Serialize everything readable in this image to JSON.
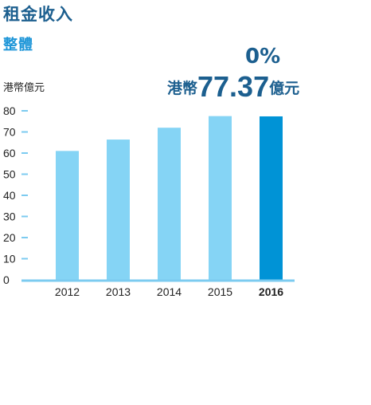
{
  "header": {
    "title": "租金收入",
    "subtitle": "整體",
    "unit_label": "港幣億元",
    "change": "0%",
    "headline_prefix": "港幣",
    "headline_value": "77.37",
    "headline_suffix": "億元"
  },
  "colors": {
    "bar_light": "#85d4f5",
    "bar_highlight": "#0093d6",
    "axis": "#7ccbf0",
    "title": "#1c5f8f",
    "subtitle": "#1e96d8"
  },
  "chart_data": {
    "type": "bar",
    "categories": [
      "2012",
      "2013",
      "2014",
      "2015",
      "2016"
    ],
    "values": [
      61,
      66.4,
      72,
      77.5,
      77.37
    ],
    "highlight_category": "2016",
    "ylabel": "港幣億元",
    "ylim": [
      0,
      80
    ],
    "yticks": [
      0,
      10,
      20,
      30,
      40,
      50,
      60,
      70,
      80
    ],
    "grid": false
  }
}
